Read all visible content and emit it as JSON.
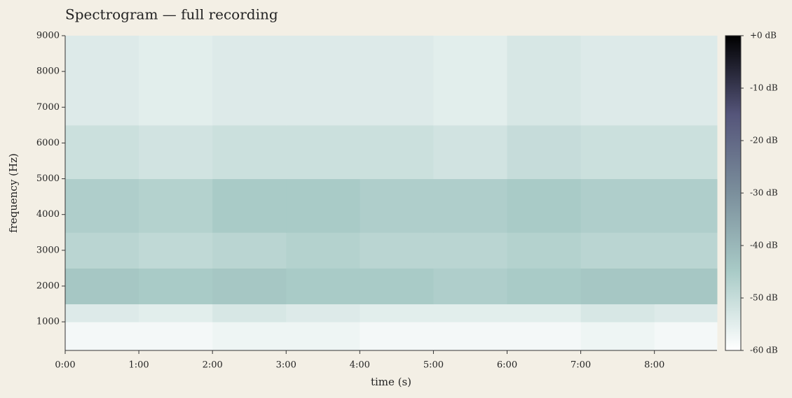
{
  "chart_data": {
    "type": "heatmap",
    "title": "Spectrogram — full recording",
    "xlabel": "time (s)",
    "ylabel": "frequency (Hz)",
    "x_edges": [
      0,
      60,
      120,
      180,
      240,
      300,
      360,
      420,
      480,
      531
    ],
    "y_edges": [
      200,
      1000,
      1500,
      2500,
      3500,
      5000,
      6500,
      9000
    ],
    "z": [
      [
        -58,
        -58,
        -57,
        -57,
        -58,
        -58,
        -58,
        -57,
        -58
      ],
      [
        -54,
        -55,
        -53,
        -54,
        -55,
        -55,
        -55,
        -53,
        -54
      ],
      [
        -44,
        -45,
        -44,
        -45,
        -45,
        -46,
        -45,
        -44,
        -44
      ],
      [
        -48,
        -49,
        -48,
        -47,
        -48,
        -48,
        -47,
        -48,
        -48
      ],
      [
        -46,
        -47,
        -45,
        -45,
        -46,
        -46,
        -45,
        -46,
        -46
      ],
      [
        -51,
        -52,
        -51,
        -51,
        -51,
        -52,
        -50,
        -51,
        -51
      ],
      [
        -54,
        -55,
        -54,
        -54,
        -54,
        -55,
        -53,
        -54,
        -54
      ]
    ],
    "xlim": [
      0,
      531
    ],
    "ylim": [
      200,
      9000
    ],
    "xticks": [
      {
        "value": 0,
        "label": "0:00"
      },
      {
        "value": 60,
        "label": "1:00"
      },
      {
        "value": 120,
        "label": "2:00"
      },
      {
        "value": 180,
        "label": "3:00"
      },
      {
        "value": 240,
        "label": "4:00"
      },
      {
        "value": 300,
        "label": "5:00"
      },
      {
        "value": 360,
        "label": "6:00"
      },
      {
        "value": 420,
        "label": "7:00"
      },
      {
        "value": 480,
        "label": "8:00"
      }
    ],
    "yticks": [
      1000,
      2000,
      3000,
      4000,
      5000,
      6000,
      7000,
      8000,
      9000
    ],
    "clim": [
      -60,
      0
    ],
    "cticks": [
      {
        "value": 0,
        "label": "+0 dB"
      },
      {
        "value": -10,
        "label": "-10 dB"
      },
      {
        "value": -20,
        "label": "-20 dB"
      },
      {
        "value": -30,
        "label": "-30 dB"
      },
      {
        "value": -40,
        "label": "-40 dB"
      },
      {
        "value": -50,
        "label": "-50 dB"
      },
      {
        "value": -60,
        "label": "-60 dB"
      }
    ],
    "colormap": [
      "#ffffff",
      "#a9cbc7",
      "#7b8f9c",
      "#55557a",
      "#000000"
    ]
  }
}
